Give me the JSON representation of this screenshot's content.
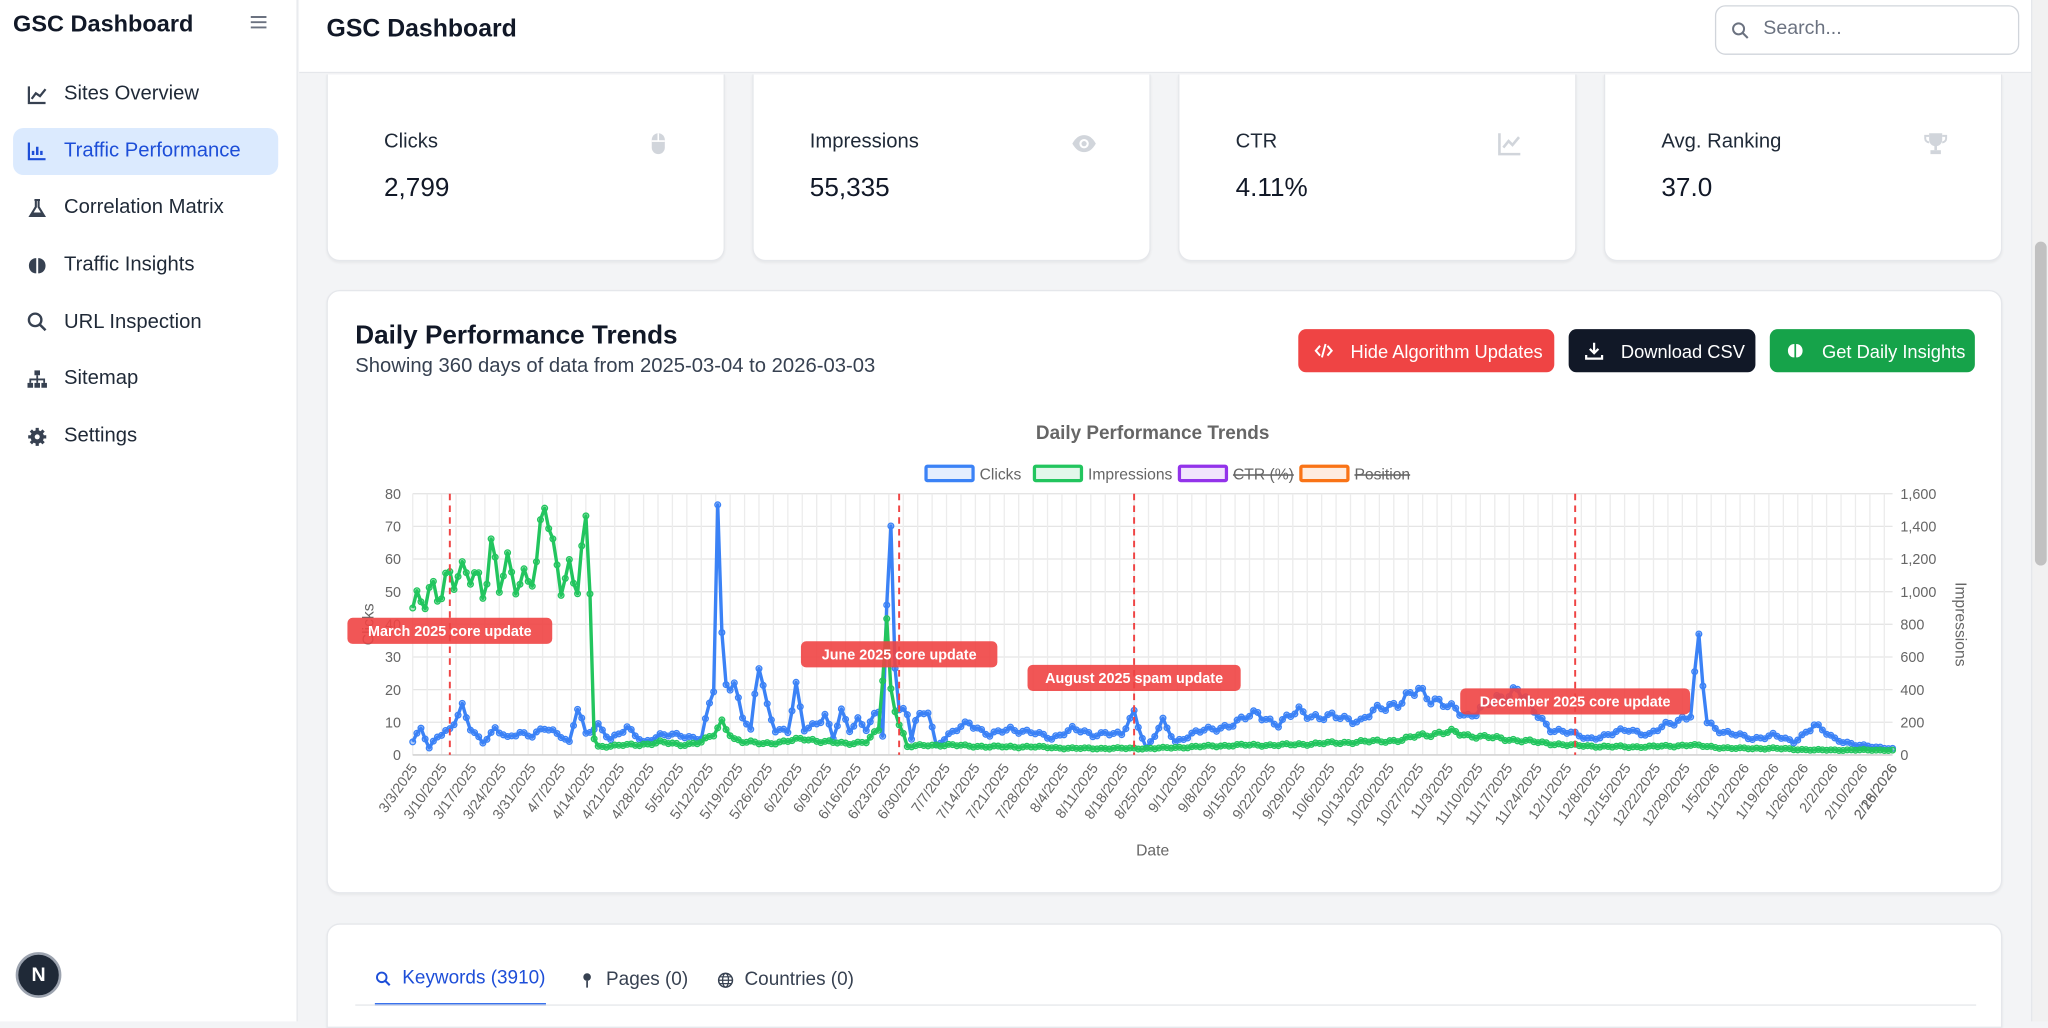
{
  "app": {
    "brand": "GSC Dashboard",
    "page_title": "GSC Dashboard",
    "badge_letter": "N"
  },
  "search": {
    "placeholder": "Search..."
  },
  "sidebar": {
    "items": [
      {
        "label": "Sites Overview",
        "icon": "line-chart-icon",
        "active": false
      },
      {
        "label": "Traffic Performance",
        "icon": "bar-chart-icon",
        "active": true
      },
      {
        "label": "Correlation Matrix",
        "icon": "flask-icon",
        "active": false
      },
      {
        "label": "Traffic Insights",
        "icon": "brain-icon",
        "active": false
      },
      {
        "label": "URL Inspection",
        "icon": "search-icon",
        "active": false
      },
      {
        "label": "Sitemap",
        "icon": "sitemap-icon",
        "active": false
      },
      {
        "label": "Settings",
        "icon": "gear-icon",
        "active": false
      }
    ]
  },
  "stats": [
    {
      "label": "Clicks",
      "value": "2,799",
      "icon": "mouse-icon"
    },
    {
      "label": "Impressions",
      "value": "55,335",
      "icon": "eye-icon"
    },
    {
      "label": "CTR",
      "value": "4.11%",
      "icon": "trend-chart-icon"
    },
    {
      "label": "Avg. Ranking",
      "value": "37.0",
      "icon": "trophy-icon"
    }
  ],
  "performance": {
    "title": "Daily Performance Trends",
    "subtitle": "Showing 360 days of data from 2025-03-04 to 2026-03-03",
    "buttons": {
      "hide_updates": "Hide Algorithm Updates",
      "download_csv": "Download CSV",
      "daily_insights": "Get Daily Insights"
    },
    "colors": {
      "red": "#ef4444",
      "dark": "#111827",
      "green": "#16a34a"
    }
  },
  "tabs": [
    {
      "label": "Keywords (3910)",
      "icon": "search-icon",
      "active": true
    },
    {
      "label": "Pages (0)",
      "icon": "pin-icon",
      "active": false
    },
    {
      "label": "Countries (0)",
      "icon": "globe-icon",
      "active": false
    }
  ],
  "chart_data": {
    "type": "line",
    "title": "Daily Performance Trends",
    "xlabel": "Date",
    "ylabel": "Clicks",
    "y2label": "Impressions",
    "ylim": [
      0,
      80
    ],
    "y2lim": [
      0,
      1600
    ],
    "y_ticks": [
      "0",
      "10",
      "20",
      "30",
      "40",
      "50",
      "60",
      "70",
      "80"
    ],
    "y2_ticks": [
      "0",
      "200",
      "400",
      "600",
      "800",
      "1,000",
      "1,200",
      "1,400",
      "1,600"
    ],
    "x_tick_labels": [
      "3/3/2025",
      "3/10/2025",
      "3/17/2025",
      "3/24/2025",
      "3/31/2025",
      "4/7/2025",
      "4/14/2025",
      "4/21/2025",
      "4/28/2025",
      "5/5/2025",
      "5/12/2025",
      "5/19/2025",
      "5/26/2025",
      "6/2/2025",
      "6/9/2025",
      "6/16/2025",
      "6/23/2025",
      "6/30/2025",
      "7/7/2025",
      "7/14/2025",
      "7/21/2025",
      "7/28/2025",
      "8/4/2025",
      "8/11/2025",
      "8/18/2025",
      "8/25/2025",
      "9/1/2025",
      "9/8/2025",
      "9/15/2025",
      "9/22/2025",
      "9/29/2025",
      "10/6/2025",
      "10/13/2025",
      "10/20/2025",
      "10/27/2025",
      "11/3/2025",
      "11/10/2025",
      "11/17/2025",
      "11/24/2025",
      "12/1/2025",
      "12/8/2025",
      "12/15/2025",
      "12/22/2025",
      "12/29/2025",
      "1/5/2026",
      "1/12/2026",
      "1/19/2026",
      "1/26/2026",
      "2/2/2026",
      "2/10/2026",
      "2/18/2026",
      "2/26/2026"
    ],
    "legend": [
      {
        "label": "Clicks",
        "color": "#3b82f6",
        "hidden": false
      },
      {
        "label": "Impressions",
        "color": "#22c55e",
        "hidden": false
      },
      {
        "label": "CTR (%)",
        "color": "#9333ea",
        "hidden": true
      },
      {
        "label": "Position",
        "color": "#f97316",
        "hidden": true
      }
    ],
    "annotations": [
      {
        "label": "March 2025 core update",
        "date": "2025-03-13"
      },
      {
        "label": "June 2025 core update",
        "date": "2025-06-30"
      },
      {
        "label": "August 2025 spam update",
        "date": "2025-08-26"
      },
      {
        "label": "December 2025 core update",
        "date": "2025-12-11"
      }
    ],
    "series": [
      {
        "name": "Clicks",
        "axis": "left",
        "color": "#3b82f6",
        "anchors": [
          [
            0,
            4
          ],
          [
            2,
            8
          ],
          [
            4,
            2
          ],
          [
            6,
            6
          ],
          [
            9,
            8
          ],
          [
            12,
            14
          ],
          [
            14,
            8
          ],
          [
            17,
            4
          ],
          [
            20,
            8
          ],
          [
            23,
            5
          ],
          [
            26,
            7
          ],
          [
            29,
            6
          ],
          [
            32,
            8
          ],
          [
            36,
            6
          ],
          [
            38,
            4
          ],
          [
            40,
            15
          ],
          [
            42,
            6
          ],
          [
            45,
            9
          ],
          [
            48,
            5
          ],
          [
            52,
            8
          ],
          [
            56,
            4
          ],
          [
            60,
            6
          ],
          [
            65,
            6
          ],
          [
            70,
            5
          ],
          [
            73,
            20
          ],
          [
            74,
            74
          ],
          [
            75,
            35
          ],
          [
            76,
            23
          ],
          [
            78,
            22
          ],
          [
            80,
            12
          ],
          [
            82,
            7
          ],
          [
            84,
            28
          ],
          [
            86,
            15
          ],
          [
            88,
            8
          ],
          [
            91,
            7
          ],
          [
            93,
            20
          ],
          [
            95,
            8
          ],
          [
            98,
            10
          ],
          [
            100,
            12
          ],
          [
            102,
            5
          ],
          [
            104,
            13
          ],
          [
            106,
            8
          ],
          [
            108,
            11
          ],
          [
            110,
            8
          ],
          [
            113,
            13
          ],
          [
            114,
            6
          ],
          [
            115,
            44
          ],
          [
            116,
            69
          ],
          [
            117,
            30
          ],
          [
            118,
            15
          ],
          [
            120,
            12
          ],
          [
            121,
            5
          ],
          [
            122,
            10
          ],
          [
            125,
            14
          ],
          [
            127,
            3
          ],
          [
            130,
            6
          ],
          [
            135,
            10
          ],
          [
            140,
            6
          ],
          [
            145,
            8
          ],
          [
            150,
            7
          ],
          [
            155,
            5
          ],
          [
            158,
            7
          ],
          [
            160,
            8
          ],
          [
            165,
            6
          ],
          [
            168,
            7
          ],
          [
            172,
            6
          ],
          [
            175,
            13
          ],
          [
            178,
            2
          ],
          [
            182,
            10
          ],
          [
            185,
            4
          ],
          [
            190,
            7
          ],
          [
            195,
            8
          ],
          [
            200,
            10
          ],
          [
            205,
            13
          ],
          [
            210,
            9
          ],
          [
            215,
            14
          ],
          [
            220,
            11
          ],
          [
            225,
            12
          ],
          [
            230,
            10
          ],
          [
            235,
            15
          ],
          [
            240,
            16
          ],
          [
            244,
            20
          ],
          [
            248,
            17
          ],
          [
            252,
            14
          ],
          [
            256,
            12
          ],
          [
            260,
            15
          ],
          [
            264,
            17
          ],
          [
            268,
            21
          ],
          [
            272,
            13
          ],
          [
            276,
            8
          ],
          [
            280,
            7
          ],
          [
            285,
            5
          ],
          [
            290,
            6
          ],
          [
            295,
            8
          ],
          [
            300,
            6
          ],
          [
            305,
            10
          ],
          [
            310,
            12
          ],
          [
            312,
            34
          ],
          [
            314,
            10
          ],
          [
            318,
            7
          ],
          [
            325,
            5
          ],
          [
            330,
            6
          ],
          [
            335,
            4
          ],
          [
            340,
            9
          ],
          [
            345,
            5
          ],
          [
            350,
            3
          ],
          [
            359,
            2
          ]
        ]
      },
      {
        "name": "Impressions",
        "axis": "right",
        "color": "#22c55e",
        "anchors": [
          [
            0,
            900
          ],
          [
            3,
            920
          ],
          [
            5,
            1000
          ],
          [
            7,
            1060
          ],
          [
            9,
            1120
          ],
          [
            12,
            1050
          ],
          [
            14,
            1100
          ],
          [
            17,
            1060
          ],
          [
            19,
            1280
          ],
          [
            21,
            1040
          ],
          [
            23,
            1100
          ],
          [
            26,
            1060
          ],
          [
            28,
            1160
          ],
          [
            30,
            1120
          ],
          [
            32,
            1540
          ],
          [
            34,
            1200
          ],
          [
            36,
            1100
          ],
          [
            38,
            1160
          ],
          [
            40,
            1060
          ],
          [
            42,
            1320
          ],
          [
            43,
            1000
          ],
          [
            44,
            100
          ],
          [
            45,
            50
          ],
          [
            50,
            60
          ],
          [
            55,
            60
          ],
          [
            60,
            80
          ],
          [
            65,
            60
          ],
          [
            70,
            80
          ],
          [
            73,
            120
          ],
          [
            75,
            200
          ],
          [
            78,
            100
          ],
          [
            80,
            80
          ],
          [
            85,
            70
          ],
          [
            90,
            80
          ],
          [
            95,
            100
          ],
          [
            100,
            80
          ],
          [
            105,
            70
          ],
          [
            110,
            80
          ],
          [
            113,
            150
          ],
          [
            115,
            800
          ],
          [
            116,
            400
          ],
          [
            117,
            300
          ],
          [
            118,
            200
          ],
          [
            120,
            50
          ],
          [
            125,
            60
          ],
          [
            130,
            60
          ],
          [
            140,
            50
          ],
          [
            150,
            50
          ],
          [
            160,
            40
          ],
          [
            170,
            40
          ],
          [
            180,
            40
          ],
          [
            190,
            50
          ],
          [
            200,
            60
          ],
          [
            210,
            60
          ],
          [
            220,
            70
          ],
          [
            230,
            80
          ],
          [
            240,
            90
          ],
          [
            244,
            120
          ],
          [
            248,
            130
          ],
          [
            252,
            140
          ],
          [
            256,
            120
          ],
          [
            260,
            110
          ],
          [
            264,
            100
          ],
          [
            268,
            90
          ],
          [
            272,
            80
          ],
          [
            280,
            60
          ],
          [
            290,
            50
          ],
          [
            300,
            50
          ],
          [
            310,
            60
          ],
          [
            320,
            40
          ],
          [
            330,
            40
          ],
          [
            340,
            30
          ],
          [
            350,
            30
          ],
          [
            359,
            30
          ]
        ]
      }
    ]
  }
}
